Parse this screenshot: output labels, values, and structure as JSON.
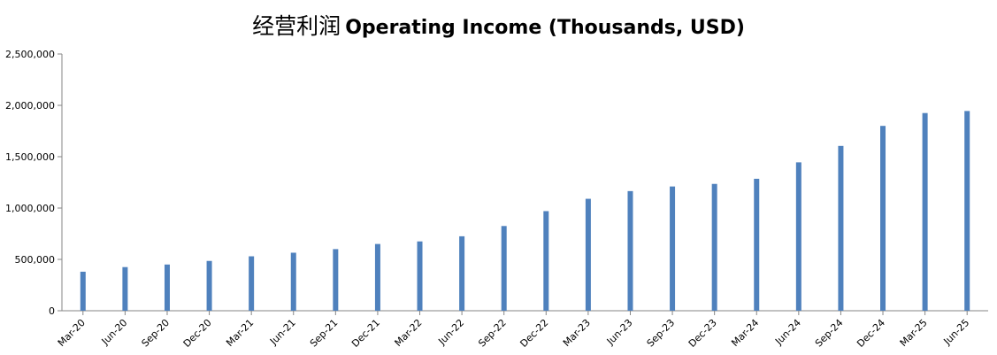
{
  "chart_data": {
    "type": "bar",
    "title_cn": "经营利润",
    "title_en": "Operating Income (Thousands, USD)",
    "xlabel": "",
    "ylabel": "",
    "ylim": [
      0,
      2500000
    ],
    "yticks": [
      0,
      500000,
      1000000,
      1500000,
      2000000,
      2500000
    ],
    "ytick_labels": [
      "0",
      "500,000",
      "1,000,000",
      "1,500,000",
      "2,000,000",
      "2,500,000"
    ],
    "grid": false,
    "legend": "none",
    "bar_color": "#4f81bd",
    "categories": [
      "Mar-20",
      "Jun-20",
      "Sep-20",
      "Dec-20",
      "Mar-21",
      "Jun-21",
      "Sep-21",
      "Dec-21",
      "Mar-22",
      "Jun-22",
      "Sep-22",
      "Dec-22",
      "Mar-23",
      "Jun-23",
      "Sep-23",
      "Dec-23",
      "Mar-24",
      "Jun-24",
      "Sep-24",
      "Dec-24",
      "Mar-25",
      "Jun-25"
    ],
    "values": [
      380000,
      425000,
      450000,
      485000,
      530000,
      565000,
      600000,
      650000,
      675000,
      725000,
      825000,
      970000,
      1090000,
      1165000,
      1210000,
      1235000,
      1285000,
      1445000,
      1605000,
      1800000,
      1925000,
      1945000
    ]
  }
}
